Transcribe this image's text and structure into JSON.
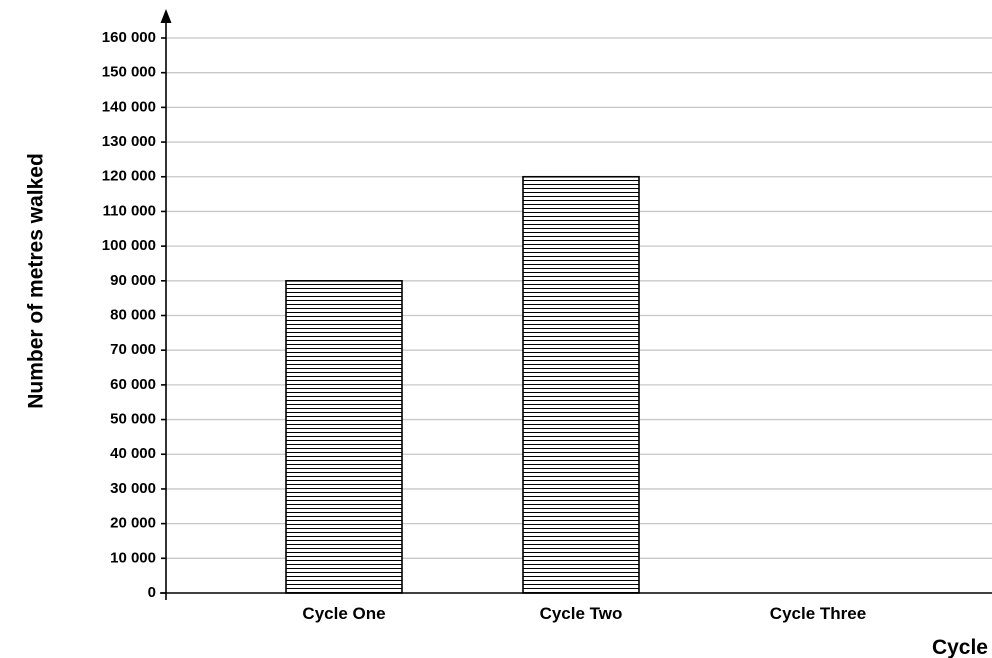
{
  "chart_data": {
    "type": "bar",
    "title": "",
    "xlabel": "Cycle",
    "ylabel": "Number of metres walked",
    "categories": [
      "Cycle One",
      "Cycle Two",
      "Cycle Three"
    ],
    "values": [
      90000,
      120000,
      null
    ],
    "ylim": [
      0,
      160000
    ],
    "ytick_step": 10000,
    "ytick_labels": [
      "0",
      "10 000",
      "20 000",
      "30 000",
      "40 000",
      "50 000",
      "60 000",
      "70 000",
      "80 000",
      "90 000",
      "100 000",
      "110 000",
      "120 000",
      "130 000",
      "140 000",
      "150 000",
      "160 000"
    ],
    "grid": true,
    "bar_fill": "horizontal-hatch",
    "colors": {
      "bar_stroke": "#000000",
      "hatch": "#000000",
      "grid": "#c8c8c8",
      "background": "#ffffff"
    }
  }
}
